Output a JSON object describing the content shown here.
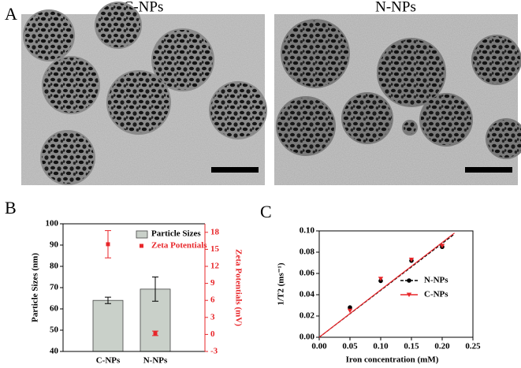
{
  "figure": {
    "panel_labels": [
      "A",
      "B",
      "C"
    ],
    "image_labels": [
      "C-NPs",
      "N-NPs"
    ]
  },
  "chart_data": [
    {
      "type": "bar",
      "categories": [
        "C-NPs",
        "N-NPs"
      ],
      "ylabel": "Particle Sizes (nm)",
      "y2label": "Zeta Potentials (mV)",
      "ylim": [
        40,
        100
      ],
      "yticks": [
        40,
        50,
        60,
        70,
        80,
        90,
        100
      ],
      "y2lim": [
        -3,
        19.5
      ],
      "y2ticks": [
        -3,
        0,
        3,
        6,
        9,
        12,
        15,
        18
      ],
      "series": [
        {
          "name": "Particle Sizes",
          "color": "#c9d0c9",
          "values": [
            64,
            69.3
          ],
          "errors": [
            1.5,
            5.7
          ]
        },
        {
          "name": "Zeta Potentials",
          "color": "#e8262a",
          "type": "scatter",
          "axis": "y2",
          "values": [
            15.9,
            0.2
          ],
          "errors": [
            2.4,
            0.4
          ]
        }
      ]
    },
    {
      "type": "scatter",
      "xlabel": "Iron concentration (mM)",
      "ylabel": "1/T2 (ms⁻¹)",
      "x": [
        0.05,
        0.1,
        0.15,
        0.2
      ],
      "xlim": [
        0,
        0.25
      ],
      "xticks": [
        {
          "value": 0,
          "label": "0.00"
        },
        0.05,
        {
          "value": 0.1,
          "label": "0.10"
        },
        0.15,
        {
          "value": 0.2,
          "label": "0.20"
        },
        0.25
      ],
      "ylim": [
        0,
        0.1
      ],
      "yticks": [
        {
          "value": 0,
          "label": "0.00"
        },
        0.02,
        0.04,
        0.06,
        0.08,
        {
          "value": 0.1,
          "label": "0.10"
        }
      ],
      "series": [
        {
          "name": "N-NPs",
          "color": "#000000",
          "marker": "circle",
          "dash": true,
          "values": [
            0.028,
            0.053,
            0.072,
            0.085
          ],
          "fit": {
            "x": [
              0,
              0.22
            ],
            "values": [
              0,
              0.097
            ]
          }
        },
        {
          "name": "C-NPs",
          "color": "#e8262a",
          "marker": "triangle-down",
          "dash": false,
          "values": [
            0.025,
            0.055,
            0.073,
            0.086
          ],
          "fit": {
            "x": [
              0,
              0.22
            ],
            "values": [
              0,
              0.098
            ]
          }
        }
      ]
    }
  ]
}
